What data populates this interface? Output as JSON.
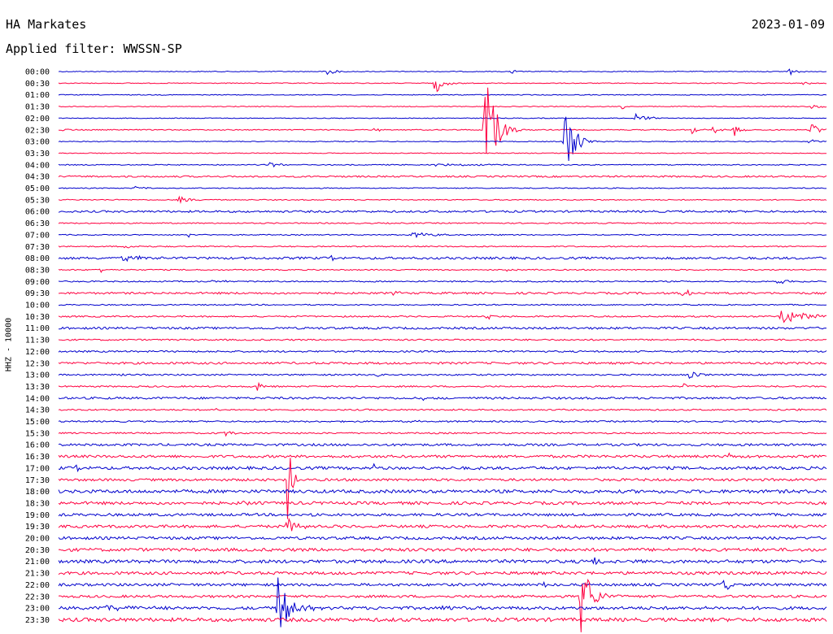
{
  "header": {
    "station": "HA Markates",
    "date": "2023-01-09",
    "filter": "Applied filter: WWSSN-SP"
  },
  "chart_data": {
    "type": "line",
    "ylabel": "HHZ - 10000",
    "row_labels": [
      "00:00",
      "00:30",
      "01:00",
      "01:30",
      "02:00",
      "02:30",
      "03:00",
      "03:30",
      "04:00",
      "04:30",
      "05:00",
      "05:30",
      "06:00",
      "06:30",
      "07:00",
      "07:30",
      "08:00",
      "08:30",
      "09:00",
      "09:30",
      "10:00",
      "10:30",
      "11:00",
      "11:30",
      "12:00",
      "12:30",
      "13:00",
      "13:30",
      "14:00",
      "14:30",
      "15:00",
      "15:30",
      "16:00",
      "16:30",
      "17:00",
      "17:30",
      "18:00",
      "18:30",
      "19:00",
      "19:30",
      "20:00",
      "20:30",
      "21:00",
      "21:30",
      "22:00",
      "22:30",
      "23:00",
      "23:30"
    ],
    "trace_colors": [
      "#0000cc",
      "#ff0040"
    ],
    "row_noise": [
      0.5,
      0.5,
      0.5,
      0.5,
      0.5,
      0.6,
      0.5,
      0.5,
      0.6,
      1.0,
      0.6,
      0.6,
      1.2,
      0.7,
      0.6,
      0.7,
      1.4,
      0.7,
      0.8,
      1.2,
      0.7,
      0.9,
      1.3,
      0.9,
      1.0,
      1.3,
      0.9,
      0.9,
      1.3,
      0.9,
      0.9,
      0.9,
      1.4,
      1.6,
      1.8,
      1.5,
      2.0,
      1.8,
      1.6,
      1.7,
      1.7,
      1.9,
      2.0,
      1.8,
      1.6,
      1.5,
      1.9,
      2.2
    ],
    "events": [
      {
        "row": 0,
        "t": 0.35,
        "amp": 9,
        "dur": 0.006
      },
      {
        "row": 0,
        "t": 0.59,
        "amp": 4,
        "dur": 0.004
      },
      {
        "row": 0,
        "t": 0.95,
        "amp": 8,
        "dur": 0.006
      },
      {
        "row": 1,
        "t": 0.49,
        "amp": 14,
        "dur": 0.01
      },
      {
        "row": 1,
        "t": 0.97,
        "amp": 2,
        "dur": 0.01
      },
      {
        "row": 3,
        "t": 0.735,
        "amp": 6,
        "dur": 0.004
      },
      {
        "row": 3,
        "t": 0.98,
        "amp": 2,
        "dur": 0.03
      },
      {
        "row": 4,
        "t": 0.75,
        "amp": 8,
        "dur": 0.012
      },
      {
        "row": 5,
        "t": 0.005,
        "amp": 3,
        "dur": 0.006
      },
      {
        "row": 5,
        "t": 0.412,
        "amp": 4,
        "dur": 0.005
      },
      {
        "row": 5,
        "t": 0.555,
        "amp": 80,
        "dur": 0.012
      },
      {
        "row": 5,
        "t": 0.825,
        "amp": 5,
        "dur": 0.006
      },
      {
        "row": 5,
        "t": 0.852,
        "amp": 7,
        "dur": 0.006
      },
      {
        "row": 5,
        "t": 0.88,
        "amp": 8,
        "dur": 0.008
      },
      {
        "row": 5,
        "t": 0.98,
        "amp": 9,
        "dur": 0.01
      },
      {
        "row": 6,
        "t": 0.659,
        "amp": 60,
        "dur": 0.01
      },
      {
        "row": 6,
        "t": 0.978,
        "amp": 5,
        "dur": 0.006
      },
      {
        "row": 8,
        "t": 0.275,
        "amp": 3,
        "dur": 0.015
      },
      {
        "row": 8,
        "t": 0.49,
        "amp": 1.5,
        "dur": 0.05
      },
      {
        "row": 10,
        "t": 0.1,
        "amp": 2,
        "dur": 0.02
      },
      {
        "row": 11,
        "t": 0.157,
        "amp": 6,
        "dur": 0.012
      },
      {
        "row": 14,
        "t": 0.168,
        "amp": 5,
        "dur": 0.004
      },
      {
        "row": 14,
        "t": 0.46,
        "amp": 3,
        "dur": 0.04
      },
      {
        "row": 15,
        "t": 0.085,
        "amp": 2,
        "dur": 0.02
      },
      {
        "row": 16,
        "t": 0.083,
        "amp": 4,
        "dur": 0.025
      },
      {
        "row": 16,
        "t": 0.355,
        "amp": 4,
        "dur": 0.004
      },
      {
        "row": 17,
        "t": 0.055,
        "amp": 5,
        "dur": 0.004
      },
      {
        "row": 17,
        "t": 0.58,
        "amp": 2,
        "dur": 0.01
      },
      {
        "row": 18,
        "t": 0.2,
        "amp": 2,
        "dur": 0.015
      },
      {
        "row": 18,
        "t": 0.935,
        "amp": 2.5,
        "dur": 0.02
      },
      {
        "row": 19,
        "t": 0.435,
        "amp": 2,
        "dur": 0.015
      },
      {
        "row": 19,
        "t": 0.812,
        "amp": 5,
        "dur": 0.015
      },
      {
        "row": 21,
        "t": 0.558,
        "amp": 5,
        "dur": 0.004
      },
      {
        "row": 21,
        "t": 0.94,
        "amp": 10,
        "dur": 0.03
      },
      {
        "row": 26,
        "t": 0.08,
        "amp": 3,
        "dur": 0.004
      },
      {
        "row": 26,
        "t": 0.415,
        "amp": 3,
        "dur": 0.006
      },
      {
        "row": 26,
        "t": 0.822,
        "amp": 10,
        "dur": 0.006
      },
      {
        "row": 27,
        "t": 0.258,
        "amp": 7,
        "dur": 0.006
      },
      {
        "row": 27,
        "t": 0.813,
        "amp": 4,
        "dur": 0.005
      },
      {
        "row": 28,
        "t": 0.475,
        "amp": 2,
        "dur": 0.004
      },
      {
        "row": 29,
        "t": 0.205,
        "amp": 2,
        "dur": 0.004
      },
      {
        "row": 29,
        "t": 0.96,
        "amp": 2,
        "dur": 0.008
      },
      {
        "row": 30,
        "t": 0.46,
        "amp": 2,
        "dur": 0.012
      },
      {
        "row": 31,
        "t": 0.215,
        "amp": 5,
        "dur": 0.01
      },
      {
        "row": 33,
        "t": 0.873,
        "amp": 4,
        "dur": 0.006
      },
      {
        "row": 34,
        "t": 0.022,
        "amp": 5,
        "dur": 0.006
      },
      {
        "row": 34,
        "t": 0.411,
        "amp": 5,
        "dur": 0.005
      },
      {
        "row": 35,
        "t": 0.298,
        "amp": 78,
        "dur": 0.004
      },
      {
        "row": 37,
        "t": 0.24,
        "amp": 5,
        "dur": 0.004
      },
      {
        "row": 38,
        "t": 0.33,
        "amp": 5,
        "dur": 0.005
      },
      {
        "row": 39,
        "t": 0.298,
        "amp": 14,
        "dur": 0.01
      },
      {
        "row": 42,
        "t": 0.695,
        "amp": 6,
        "dur": 0.012
      },
      {
        "row": 43,
        "t": 0.402,
        "amp": 6,
        "dur": 0.005
      },
      {
        "row": 44,
        "t": 0.632,
        "amp": 6,
        "dur": 0.004
      },
      {
        "row": 44,
        "t": 0.865,
        "amp": 10,
        "dur": 0.008
      },
      {
        "row": 45,
        "t": 0.68,
        "amp": 50,
        "dur": 0.012
      },
      {
        "row": 46,
        "t": 0.285,
        "amp": 40,
        "dur": 0.014
      },
      {
        "row": 46,
        "t": 0.5,
        "amp": 6,
        "dur": 0.006
      },
      {
        "row": 46,
        "t": 0.06,
        "amp": 4,
        "dur": 0.035
      }
    ]
  }
}
